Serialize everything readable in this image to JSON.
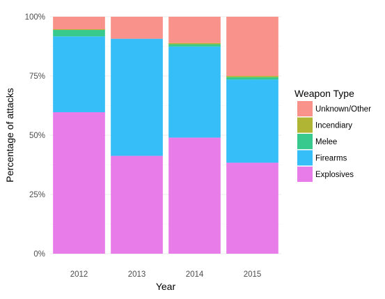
{
  "chart_data": {
    "type": "bar",
    "stacked": true,
    "normalized": true,
    "categories": [
      "2012",
      "2013",
      "2014",
      "2015"
    ],
    "series": [
      {
        "name": "Explosives",
        "color": "#E87DEA",
        "values": [
          0.597,
          0.413,
          0.49,
          0.384
        ]
      },
      {
        "name": "Firearms",
        "color": "#35BEF7",
        "values": [
          0.32,
          0.494,
          0.384,
          0.351
        ]
      },
      {
        "name": "Melee",
        "color": "#37C98E",
        "values": [
          0.027,
          0.0,
          0.01,
          0.01
        ]
      },
      {
        "name": "Incendiary",
        "color": "#B1B534",
        "values": [
          0.003,
          0.0,
          0.005,
          0.005
        ]
      },
      {
        "name": "Unknown/Other",
        "color": "#F8928A",
        "values": [
          0.053,
          0.093,
          0.111,
          0.25
        ]
      }
    ],
    "legend_order": [
      "Unknown/Other",
      "Incendiary",
      "Melee",
      "Firearms",
      "Explosives"
    ],
    "xlabel": "Year",
    "ylabel": "Percentage of attacks",
    "yticks": [
      0,
      0.25,
      0.5,
      0.75,
      1
    ],
    "ytick_labels": [
      "0%",
      "25%",
      "50%",
      "75%",
      "100%"
    ],
    "ylim": [
      0,
      1
    ],
    "legend_title": "Weapon Type",
    "legend_position": "right",
    "grid": true
  }
}
